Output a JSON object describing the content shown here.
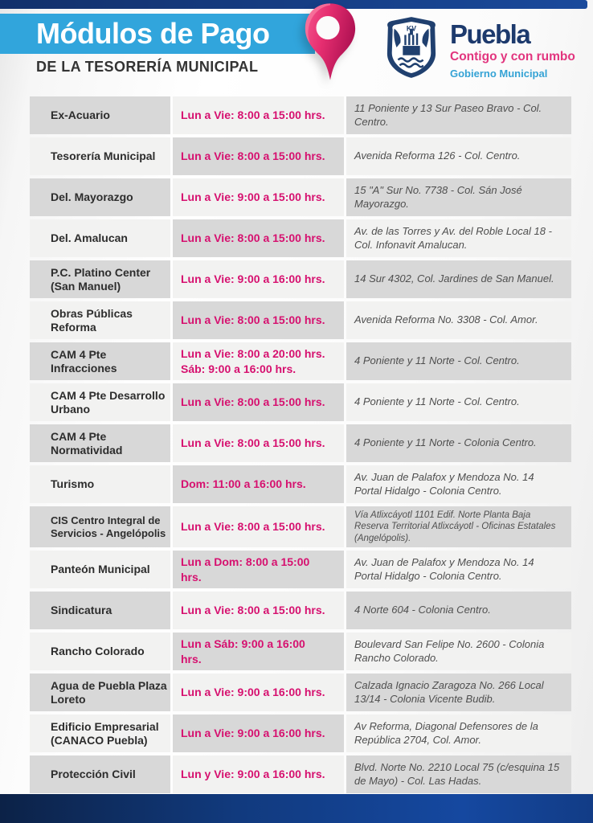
{
  "header": {
    "title": "Módulos de Pago",
    "subtitle": "DE LA TESORERÍA MUNICIPAL",
    "logo": {
      "brand": "Puebla",
      "tagline": "Contigo y con rumbo",
      "org": "Gobierno Municipal"
    },
    "icons": {
      "pin": "location-pin",
      "shield": "puebla-coat-of-arms"
    },
    "colors": {
      "banner_blue": "#31a5dc",
      "navy": "#12306b",
      "pink": "#d6106f"
    }
  },
  "table": {
    "rows": [
      {
        "name": "Ex-Acuario",
        "hours": [
          "Lun a Vie: 8:00 a 15:00 hrs."
        ],
        "address": "11 Poniente y 13 Sur Paseo Bravo - Col. Centro."
      },
      {
        "name": "Tesorería Municipal",
        "hours": [
          "Lun a Vie: 8:00 a 15:00 hrs."
        ],
        "address": "Avenida Reforma 126 - Col. Centro."
      },
      {
        "name": "Del. Mayorazgo",
        "hours": [
          "Lun a Vie: 9:00 a 15:00 hrs."
        ],
        "address": "15 \"A\" Sur No. 7738 - Col. Sán José Mayorazgo."
      },
      {
        "name": "Del. Amalucan",
        "hours": [
          "Lun a Vie: 8:00 a 15:00 hrs."
        ],
        "address": "Av. de las Torres y Av. del Roble Local 18 - Col. Infonavit Amalucan."
      },
      {
        "name": "P.C. Platino Center (San Manuel)",
        "hours": [
          "Lun a Vie: 9:00 a 16:00 hrs."
        ],
        "address": "14 Sur 4302, Col. Jardines de San Manuel."
      },
      {
        "name": "Obras Públicas Reforma",
        "hours": [
          "Lun a Vie: 8:00 a 15:00 hrs."
        ],
        "address": "Avenida Reforma No. 3308 - Col. Amor."
      },
      {
        "name": "CAM 4 Pte Infracciones",
        "hours": [
          "Lun a Vie: 8:00 a 20:00 hrs.",
          "Sáb: 9:00 a 16:00 hrs."
        ],
        "address": "4 Poniente y 11 Norte - Col. Centro."
      },
      {
        "name": "CAM 4 Pte Desarrollo Urbano",
        "hours": [
          "Lun a Vie: 8:00 a 15:00 hrs."
        ],
        "address": "4 Poniente y 11 Norte - Col. Centro."
      },
      {
        "name": "CAM 4 Pte Normatividad",
        "hours": [
          "Lun a Vie: 8:00 a 15:00 hrs."
        ],
        "address": "4 Poniente y 11 Norte - Colonia Centro."
      },
      {
        "name": "Turismo",
        "hours": [
          "Dom: 11:00 a 16:00 hrs."
        ],
        "address": "Av. Juan de Palafox y Mendoza No. 14 Portal Hidalgo - Colonia Centro."
      },
      {
        "name": "CIS Centro Integral de Servicios - Angelópolis",
        "hours": [
          "Lun a Vie: 8:00 a 15:00 hrs."
        ],
        "address": "Vía Atlixcáyotl 1101 Edif. Norte Planta Baja Reserva Territorial Atlixcáyotl - Oficinas Estatales (Angelópolis)."
      },
      {
        "name": "Panteón Municipal",
        "hours": [
          "Lun a Dom: 8:00 a 15:00",
          "hrs."
        ],
        "address": "Av. Juan de Palafox y Mendoza No. 14 Portal Hidalgo - Colonia Centro."
      },
      {
        "name": "Sindicatura",
        "hours": [
          "Lun a Vie: 8:00 a 15:00 hrs."
        ],
        "address": "4 Norte 604 - Colonia Centro."
      },
      {
        "name": "Rancho Colorado",
        "hours": [
          "Lun a Sáb: 9:00 a 16:00",
          "hrs."
        ],
        "address": "Boulevard San Felipe No. 2600 - Colonia Rancho Colorado."
      },
      {
        "name": "Agua de Puebla Plaza Loreto",
        "hours": [
          "Lun a Vie: 9:00 a 16:00 hrs."
        ],
        "address": "Calzada Ignacio Zaragoza No. 266 Local 13/14 - Colonia Vicente Budib."
      },
      {
        "name": "Edificio Empresarial (CANACO Puebla)",
        "hours": [
          "Lun a Vie: 9:00 a 16:00 hrs."
        ],
        "address": "Av Reforma, Diagonal Defensores de la República 2704, Col. Amor."
      },
      {
        "name": "Protección Civil",
        "hours": [
          "Lun y Vie: 9:00 a 16:00 hrs."
        ],
        "address": "Blvd. Norte No. 2210 Local 75 (c/esquina 15 de Mayo) - Col. Las Hadas."
      }
    ]
  }
}
